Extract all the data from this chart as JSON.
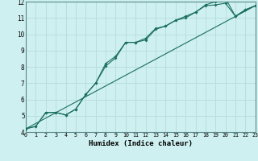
{
  "title": "",
  "xlabel": "Humidex (Indice chaleur)",
  "ylabel": "",
  "bg_color": "#cff0f0",
  "grid_color": "#b8dede",
  "line_color": "#1a6e60",
  "xlim": [
    0,
    23
  ],
  "ylim": [
    4,
    12
  ],
  "xticks": [
    0,
    1,
    2,
    3,
    4,
    5,
    6,
    7,
    8,
    9,
    10,
    11,
    12,
    13,
    14,
    15,
    16,
    17,
    18,
    19,
    20,
    21,
    22,
    23
  ],
  "yticks": [
    4,
    5,
    6,
    7,
    8,
    9,
    10,
    11,
    12
  ],
  "line1_x": [
    0,
    1,
    2,
    3,
    4,
    5,
    6,
    7,
    8,
    9,
    10,
    11,
    12,
    13,
    14,
    15,
    16,
    17,
    18,
    19,
    20,
    21,
    22,
    23
  ],
  "line1_y": [
    4.2,
    4.35,
    5.2,
    5.2,
    5.05,
    5.4,
    6.3,
    7.0,
    8.05,
    8.55,
    9.5,
    9.5,
    9.65,
    10.3,
    10.5,
    10.85,
    11.0,
    11.35,
    11.75,
    11.8,
    11.9,
    11.1,
    11.5,
    11.75
  ],
  "line2_x": [
    0,
    1,
    2,
    3,
    4,
    5,
    6,
    7,
    8,
    9,
    10,
    11,
    12,
    13,
    14,
    15,
    16,
    17,
    18,
    19,
    20,
    21,
    22,
    23
  ],
  "line2_y": [
    4.2,
    4.35,
    5.2,
    5.2,
    5.05,
    5.4,
    6.3,
    7.0,
    8.2,
    8.65,
    9.5,
    9.5,
    9.75,
    10.35,
    10.5,
    10.85,
    11.1,
    11.35,
    11.8,
    12.0,
    12.2,
    11.1,
    11.5,
    11.75
  ],
  "line3_x": [
    0,
    23
  ],
  "line3_y": [
    4.2,
    11.75
  ]
}
